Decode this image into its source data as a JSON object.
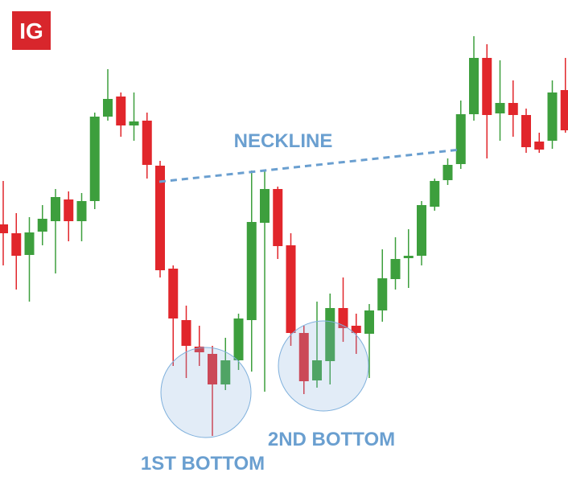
{
  "logo": "IG",
  "chart_data": {
    "type": "candlestick",
    "annotations": {
      "neckline": "NECKLINE",
      "first_bottom": "1ST BOTTOM",
      "second_bottom": "2ND BOTTOM"
    },
    "ylim": [
      0,
      608
    ],
    "color_up": "#3d9f3d",
    "color_down": "#e1262b",
    "open": [
      329,
      318,
      291,
      320,
      333,
      360,
      333,
      358,
      463,
      488,
      452,
      458,
      402,
      274,
      210,
      177,
      168,
      130,
      160,
      210,
      331,
      373,
      303,
      194,
      135,
      159,
      225,
      203,
      193,
      222,
      261,
      287,
      290,
      351,
      384,
      404,
      466,
      536,
      467,
      480,
      465,
      432,
      433,
      496
    ],
    "high": [
      383,
      343,
      338,
      353,
      373,
      370,
      368,
      468,
      522,
      493,
      493,
      468,
      408,
      278,
      228,
      203,
      178,
      188,
      218,
      396,
      396,
      376,
      318,
      203,
      233,
      243,
      263,
      218,
      230,
      298,
      313,
      323,
      358,
      386,
      411,
      483,
      563,
      553,
      533,
      508,
      473,
      443,
      508,
      536
    ],
    "low": [
      278,
      248,
      233,
      303,
      268,
      308,
      308,
      348,
      458,
      438,
      433,
      386,
      263,
      153,
      138,
      153,
      66,
      123,
      148,
      146,
      121,
      286,
      178,
      118,
      126,
      130,
      183,
      168,
      138,
      208,
      248,
      250,
      278,
      346,
      378,
      398,
      458,
      411,
      433,
      438,
      418,
      418,
      423,
      443
    ],
    "close": [
      318,
      290,
      319,
      336,
      363,
      333,
      358,
      463,
      485,
      452,
      457,
      403,
      272,
      212,
      178,
      170,
      130,
      160,
      212,
      332,
      373,
      302,
      194,
      134,
      160,
      225,
      200,
      194,
      222,
      262,
      286,
      290,
      353,
      383,
      403,
      466,
      536,
      465,
      480,
      465,
      425,
      422,
      493,
      446
    ]
  }
}
